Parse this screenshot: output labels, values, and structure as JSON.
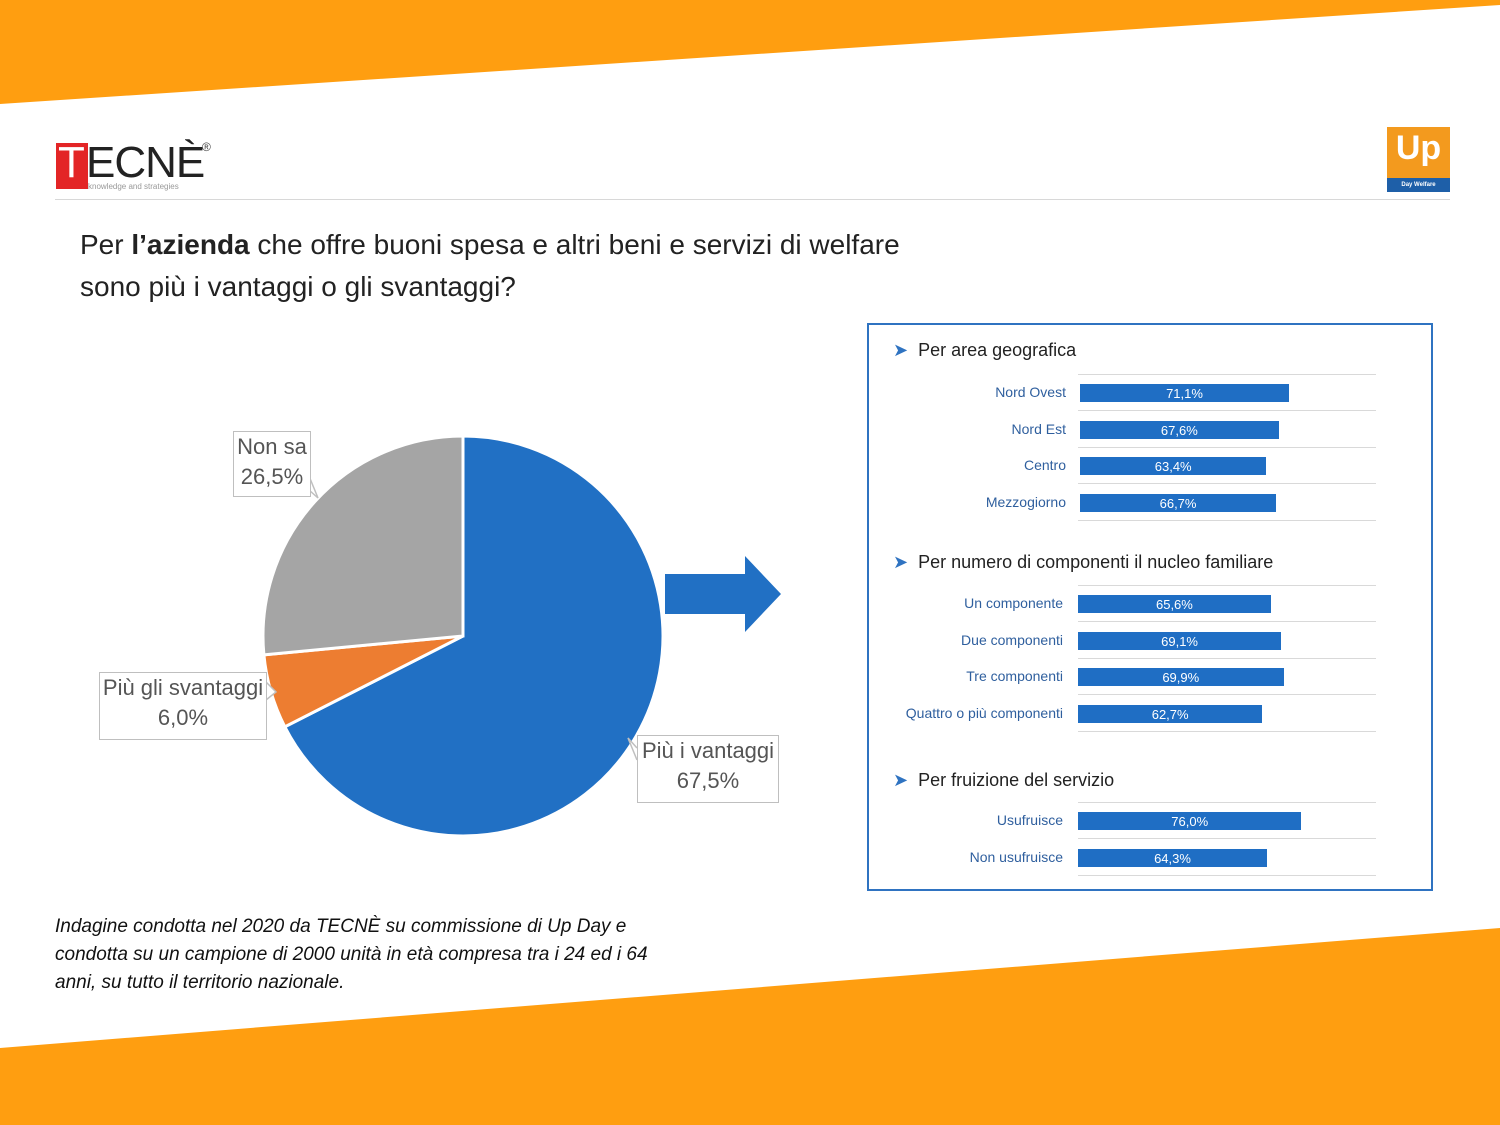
{
  "header": {
    "tecne_logo": {
      "t": "T",
      "rest": "ECNÈ",
      "reg": "®",
      "tagline": "knowledge and strategies"
    },
    "up_logo": {
      "text": "Up",
      "subtitle": "Day Welfare"
    }
  },
  "title": {
    "prefix": "Per ",
    "bold": "l’azienda",
    "line1_rest": " che offre buoni spesa e altri beni e servizi di welfare",
    "line2": "sono più i vantaggi o gli svantaggi?"
  },
  "colors": {
    "orange": "#ff9e10",
    "blue": "#2170c4",
    "grey": "#a5a5a5",
    "orange_slice": "#ed7d31",
    "panel_border": "#2f73c1"
  },
  "chart_data": [
    {
      "type": "pie",
      "categories": [
        "Più i vantaggi",
        "Più gli svantaggi",
        "Non sa"
      ],
      "values": [
        67.5,
        6.0,
        26.5
      ],
      "value_labels": [
        "67,5%",
        "6,0%",
        "26,5%"
      ],
      "colors": [
        "#2170c4",
        "#ed7d31",
        "#a5a5a5"
      ]
    },
    {
      "type": "bar",
      "section": "Per area geografica",
      "categories": [
        "Nord Ovest",
        "Nord Est",
        "Centro",
        "Mezzogiorno"
      ],
      "values": [
        71.1,
        67.6,
        63.4,
        66.7
      ],
      "value_labels": [
        "71,1%",
        "67,6%",
        "63,4%",
        "66,7%"
      ]
    },
    {
      "type": "bar",
      "section": "Per numero di componenti il nucleo familiare",
      "categories": [
        "Un componente",
        "Due componenti",
        "Tre componenti",
        "Quattro o più componenti"
      ],
      "values": [
        65.6,
        69.1,
        69.9,
        62.7
      ],
      "value_labels": [
        "65,6%",
        "69,1%",
        "69,9%",
        "62,7%"
      ]
    },
    {
      "type": "bar",
      "section": "Per fruizione del servizio",
      "categories": [
        "Usufruisce",
        "Non usufruisce"
      ],
      "values": [
        76.0,
        64.3
      ],
      "value_labels": [
        "76,0%",
        "64,3%"
      ]
    }
  ],
  "callouts": {
    "non_sa": {
      "name": "Non sa",
      "value": "26,5%"
    },
    "svantaggi": {
      "name": "Più gli svantaggi",
      "value": "6,0%"
    },
    "vantaggi": {
      "name": "Più i vantaggi",
      "value": "67,5%"
    }
  },
  "footnote": "Indagine condotta nel 2020 da TECNÈ  su commissione di Up Day e condotta su un campione di 2000 unità in età compresa tra i 24 ed i 64 anni, su tutto il territorio nazionale."
}
